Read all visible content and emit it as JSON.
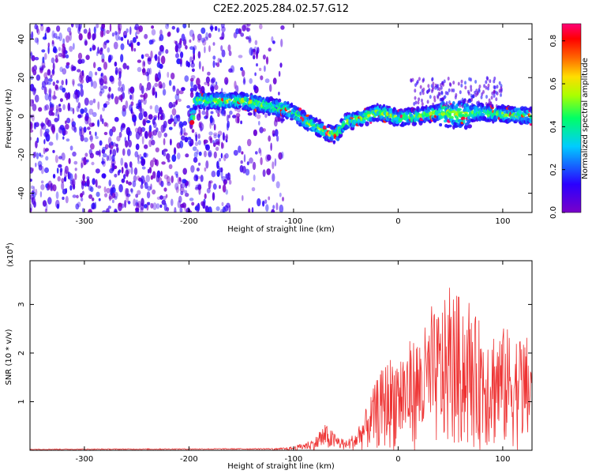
{
  "title": "C2E2.2025.284.02.57.G12",
  "chart_data": [
    {
      "type": "heatmap",
      "title": "C2E2.2025.284.02.57.G12",
      "xlabel": "Height of straight line (km)",
      "ylabel": "Frequency (Hz)",
      "xlim": [
        -352,
        128
      ],
      "ylim": [
        -50,
        48
      ],
      "xticks": [
        -300,
        -200,
        -100,
        0,
        100
      ],
      "yticks": [
        -40,
        -20,
        0,
        20,
        40
      ],
      "colorbar": {
        "label": "Normalized spectral amplitude",
        "range": [
          0,
          0.88
        ],
        "ticks": [
          0.0,
          0.2,
          0.4,
          0.6,
          0.8
        ],
        "colormap": "rainbow (purple → blue → cyan → green → yellow → orange → red → magenta)"
      },
      "description_points": [
        {
          "x": -195,
          "f": 8
        },
        {
          "x": -170,
          "f": 8
        },
        {
          "x": -150,
          "f": 8
        },
        {
          "x": -130,
          "f": 6
        },
        {
          "x": -110,
          "f": 4
        },
        {
          "x": -100,
          "f": 2
        },
        {
          "x": -90,
          "f": -2
        },
        {
          "x": -80,
          "f": -5
        },
        {
          "x": -70,
          "f": -8
        },
        {
          "x": -60,
          "f": -10
        },
        {
          "x": -50,
          "f": -3
        },
        {
          "x": -40,
          "f": -2
        },
        {
          "x": -30,
          "f": 0
        },
        {
          "x": -20,
          "f": 2
        },
        {
          "x": -10,
          "f": 1
        },
        {
          "x": 0,
          "f": -1
        },
        {
          "x": 20,
          "f": 0
        },
        {
          "x": 40,
          "f": 2
        },
        {
          "x": 60,
          "f": 1
        },
        {
          "x": 80,
          "f": 2
        },
        {
          "x": 100,
          "f": 1
        },
        {
          "x": 128,
          "f": 0
        }
      ],
      "noise_region": [
        -352,
        -110
      ]
    },
    {
      "type": "line",
      "title": "",
      "xlabel": "Height of straight line (km)",
      "ylabel": "SNR (10 * v/v)",
      "scale_label": "(x10",
      "scale_exp": "4",
      "scale_close": ")",
      "xlim": [
        -352,
        128
      ],
      "ylim": [
        0,
        3.9
      ],
      "xticks": [
        -300,
        -200,
        -100,
        0,
        100
      ],
      "yticks": [
        1,
        2,
        3
      ],
      "color": "#ee3333",
      "envelope": [
        {
          "x": -352,
          "v": 0.02
        },
        {
          "x": -120,
          "v": 0.03
        },
        {
          "x": -100,
          "v": 0.08
        },
        {
          "x": -80,
          "v": 0.25
        },
        {
          "x": -70,
          "v": 0.55
        },
        {
          "x": -60,
          "v": 0.35
        },
        {
          "x": -50,
          "v": 0.2
        },
        {
          "x": -40,
          "v": 0.4
        },
        {
          "x": -30,
          "v": 0.9
        },
        {
          "x": -20,
          "v": 1.5
        },
        {
          "x": -10,
          "v": 1.9
        },
        {
          "x": 0,
          "v": 2.1
        },
        {
          "x": 20,
          "v": 2.4
        },
        {
          "x": 40,
          "v": 3.0
        },
        {
          "x": 55,
          "v": 3.3
        },
        {
          "x": 70,
          "v": 2.8
        },
        {
          "x": 90,
          "v": 2.6
        },
        {
          "x": 110,
          "v": 2.5
        },
        {
          "x": 128,
          "v": 2.3
        }
      ]
    }
  ]
}
